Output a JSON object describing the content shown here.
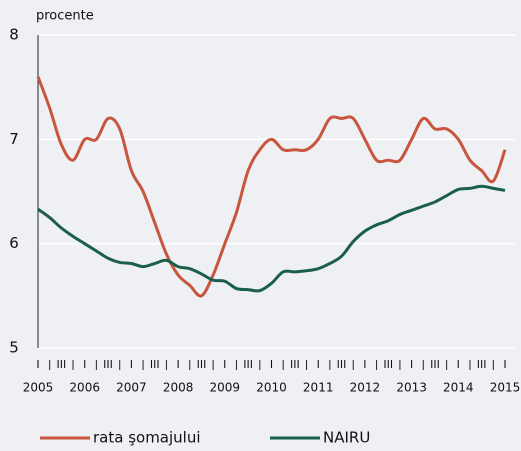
{
  "chart_data": {
    "type": "line",
    "ylabel": "procente",
    "categories": [
      "I",
      null,
      "III",
      null,
      "I",
      null,
      "III",
      null,
      "I",
      null,
      "III",
      null,
      "I",
      null,
      "III",
      null,
      "I",
      null,
      "III",
      null,
      "I",
      null,
      "III",
      null,
      "I",
      null,
      "III",
      null,
      "I",
      null,
      "III",
      null,
      "I",
      null,
      "III",
      null,
      "I",
      null,
      "III",
      null,
      "I"
    ],
    "years": [
      "2005",
      "2006",
      "2007",
      "2008",
      "2009",
      "2010",
      "2011",
      "2012",
      "2013",
      "2014",
      "2015"
    ],
    "series": [
      {
        "name": "rata şomajului",
        "color": "#c8553d",
        "values": [
          7.6,
          7.3,
          6.95,
          6.8,
          7.0,
          7.0,
          7.2,
          7.1,
          6.7,
          6.5,
          6.2,
          5.9,
          5.7,
          5.6,
          5.5,
          5.7,
          6.0,
          6.3,
          6.7,
          6.9,
          7.0,
          6.9,
          6.9,
          6.9,
          7.0,
          7.2,
          7.2,
          7.2,
          7.0,
          6.8,
          6.8,
          6.8,
          7.0,
          7.2,
          7.1,
          7.1,
          7.0,
          6.8,
          6.7,
          6.6,
          6.9
        ]
      },
      {
        "name": "NAIRU",
        "color": "#1b5e4b",
        "values": [
          6.33,
          6.25,
          6.15,
          6.07,
          6.0,
          5.93,
          5.86,
          5.82,
          5.81,
          5.78,
          5.81,
          5.84,
          5.78,
          5.76,
          5.71,
          5.65,
          5.64,
          5.57,
          5.56,
          5.55,
          5.62,
          5.73,
          5.73,
          5.74,
          5.76,
          5.81,
          5.88,
          6.02,
          6.12,
          6.18,
          6.22,
          6.28,
          6.32,
          6.36,
          6.4,
          6.46,
          6.52,
          6.53,
          6.55,
          6.53,
          6.51
        ]
      }
    ],
    "ylim": [
      5,
      8
    ],
    "yticks": [
      5,
      6,
      7,
      8
    ],
    "grid": true
  }
}
